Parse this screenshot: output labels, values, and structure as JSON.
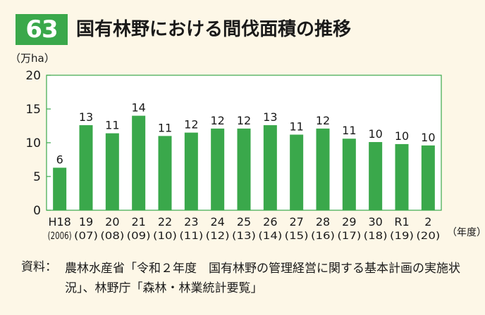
{
  "header": {
    "number": "63",
    "title": "国有林野における間伐面積の推移"
  },
  "chart_data": {
    "type": "bar",
    "title": "国有林野における間伐面積の推移",
    "ylabel": "（万ha）",
    "xlabel": "（年度）",
    "ylim": [
      0,
      20
    ],
    "yticks": [
      0,
      5,
      10,
      15,
      20
    ],
    "grid": false,
    "categories": [
      "H18",
      "19",
      "20",
      "21",
      "22",
      "23",
      "24",
      "25",
      "26",
      "27",
      "28",
      "29",
      "30",
      "R1",
      "2"
    ],
    "sublabels": [
      "(2006)",
      "(07)",
      "(08)",
      "(09)",
      "(10)",
      "(11)",
      "(12)",
      "(13)",
      "(14)",
      "(15)",
      "(16)",
      "(17)",
      "(18)",
      "(19)",
      "(20)"
    ],
    "values": [
      6.3,
      12.6,
      11.4,
      14.0,
      11.0,
      11.5,
      12.1,
      12.1,
      12.6,
      11.2,
      12.1,
      10.6,
      10.1,
      9.8,
      9.6
    ],
    "data_labels": [
      "6",
      "13",
      "11",
      "14",
      "11",
      "12",
      "12",
      "12",
      "13",
      "11",
      "12",
      "11",
      "10",
      "10",
      "10"
    ],
    "bar_color": "#3aa84b",
    "frame_color": "#3aa84b"
  },
  "source": {
    "label": "資料：",
    "text": "農林水産省「令和２年度　国有林野の管理経営に関する基本計画の実施状況」、林野庁「森林・林業統計要覧」"
  }
}
